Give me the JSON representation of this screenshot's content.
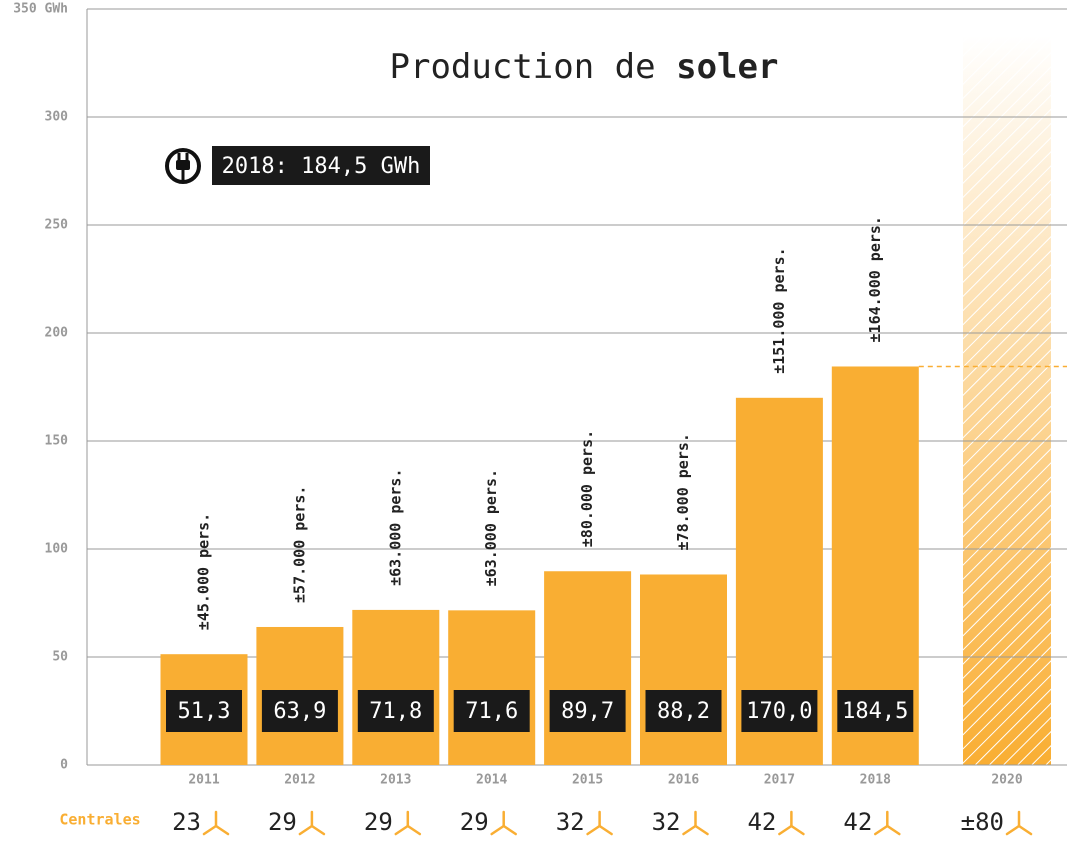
{
  "chart_data": {
    "type": "bar",
    "title": "Production de",
    "title_bold": "soler",
    "callout": "2018: 184,5 GWh",
    "categories": [
      "2011",
      "2012",
      "2013",
      "2014",
      "2015",
      "2016",
      "2017",
      "2018",
      "2020"
    ],
    "values": [
      51.3,
      63.9,
      71.8,
      71.6,
      89.7,
      88.2,
      170.0,
      184.5,
      null
    ],
    "value_labels": [
      "51,3",
      "63,9",
      "71,8",
      "71,6",
      "89,7",
      "88,2",
      "170,0",
      "184,5",
      null
    ],
    "annotations": [
      "±45.000 pers.",
      "±57.000 pers.",
      "±63.000 pers.",
      "±63.000 pers.",
      "±80.000 pers.",
      "±78.000 pers.",
      "±151.000 pers.",
      "±164.000 pers.",
      null
    ],
    "centrales_label": "Centrales",
    "centrales": [
      "23",
      "29",
      "29",
      "29",
      "32",
      "32",
      "42",
      "42",
      "±80"
    ],
    "color": "#f9ae33",
    "ylim": [
      0,
      350
    ],
    "yticks": [
      0,
      50,
      100,
      150,
      200,
      250,
      300,
      {
        "value": 350,
        "label": "350 GWh"
      }
    ],
    "grid": true
  }
}
